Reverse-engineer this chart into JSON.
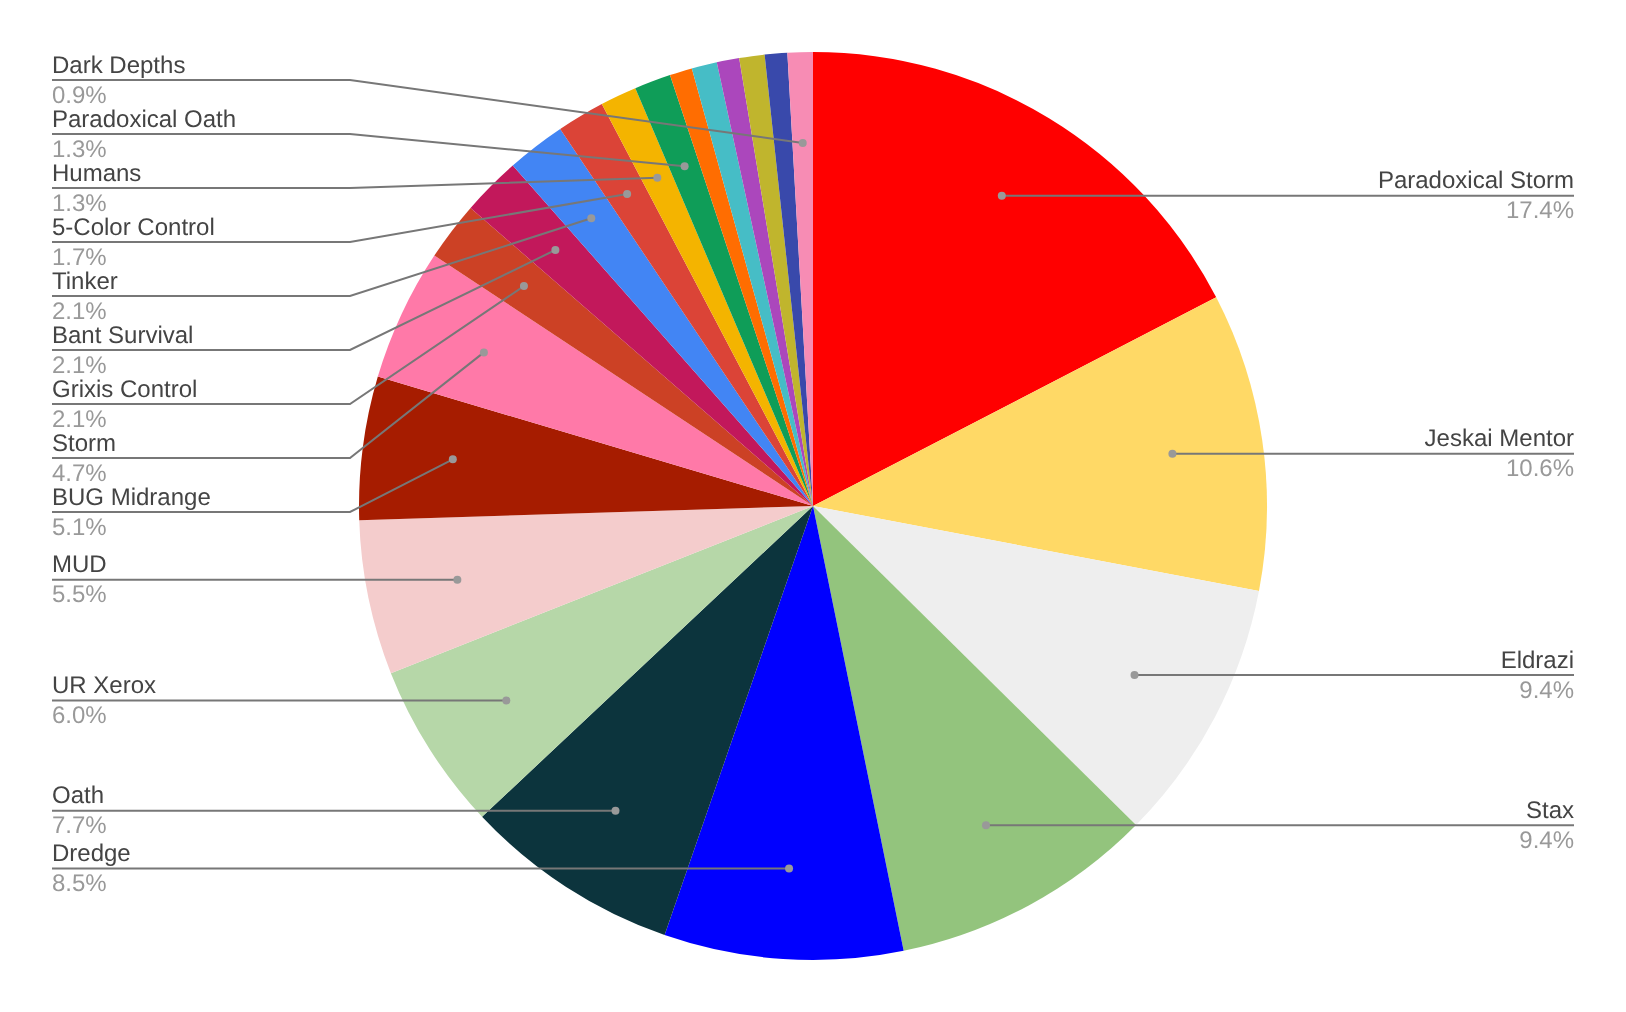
{
  "chart_data": {
    "type": "pie",
    "categories": [
      "Paradoxical Storm",
      "Jeskai Mentor",
      "Eldrazi",
      "Stax",
      "Dredge",
      "Oath",
      "UR Xerox",
      "MUD",
      "BUG Midrange",
      "Storm",
      "Grixis Control",
      "Bant Survival",
      "Tinker",
      "5-Color Control",
      "Humans",
      "Paradoxical Oath",
      null,
      null,
      null,
      null,
      null,
      "Dark Depths"
    ],
    "values": [
      17.4,
      10.6,
      9.4,
      9.4,
      8.5,
      7.7,
      6.0,
      5.5,
      5.1,
      4.7,
      2.1,
      2.1,
      2.1,
      1.7,
      1.3,
      1.3,
      0.8,
      0.9,
      0.8,
      0.9,
      0.8,
      0.9
    ],
    "value_labels": [
      "17.4%",
      "10.6%",
      "9.4%",
      "9.4%",
      "8.5%",
      "7.7%",
      "6.0%",
      "5.5%",
      "5.1%",
      "4.7%",
      "2.1%",
      "2.1%",
      "2.1%",
      "1.7%",
      "1.3%",
      "1.3%",
      null,
      null,
      null,
      null,
      null,
      "0.9%"
    ],
    "colors": [
      "#ff0000",
      "#ffd966",
      "#eeeeee",
      "#93c47d",
      "#0000ff",
      "#0c343d",
      "#b6d7a8",
      "#f4cccc",
      "#a61c00",
      "#ff79a8",
      "#cc4125",
      "#c2185b",
      "#4285f4",
      "#db4437",
      "#f4b400",
      "#0f9d58",
      "#ff6d01",
      "#46bdc6",
      "#ab47bc",
      "#c0b52d",
      "#3949ab",
      "#f78cb4"
    ]
  }
}
